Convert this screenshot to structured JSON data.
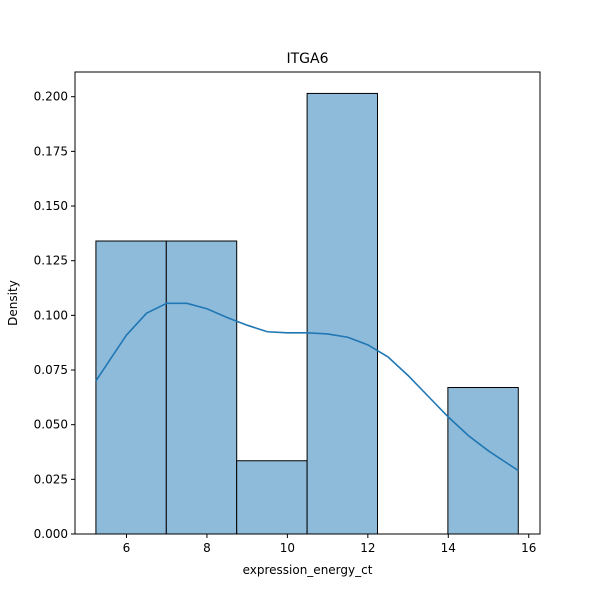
{
  "chart_data": {
    "type": "bar",
    "title": "ITGA6",
    "xlabel": "expression_energy_ct",
    "ylabel": "Density",
    "xlim": [
      4.72,
      16.28
    ],
    "ylim": [
      0,
      0.2113
    ],
    "xticks": [
      6,
      8,
      10,
      12,
      14,
      16
    ],
    "yticks": [
      0.0,
      0.025,
      0.05,
      0.075,
      0.1,
      0.125,
      0.15,
      0.175,
      0.2
    ],
    "ytick_labels": [
      "0.000",
      "0.025",
      "0.050",
      "0.075",
      "0.100",
      "0.125",
      "0.150",
      "0.175",
      "0.200"
    ],
    "bin_edges": [
      5.24,
      6.99,
      8.74,
      10.49,
      12.24,
      13.99,
      15.74
    ],
    "values": [
      0.134,
      0.134,
      0.0335,
      0.2015,
      0.0,
      0.067
    ],
    "bar_color": "#8fbbdb",
    "kde_color": "#1f77b4",
    "kde": {
      "x": [
        5.24,
        5.6,
        6.0,
        6.5,
        7.0,
        7.5,
        8.0,
        8.5,
        9.0,
        9.5,
        10.0,
        10.5,
        11.0,
        11.5,
        12.0,
        12.5,
        13.0,
        13.5,
        14.0,
        14.5,
        15.0,
        15.74
      ],
      "y": [
        0.07,
        0.08,
        0.091,
        0.101,
        0.1055,
        0.1055,
        0.103,
        0.099,
        0.0955,
        0.0925,
        0.092,
        0.092,
        0.0915,
        0.09,
        0.0865,
        0.081,
        0.0725,
        0.063,
        0.0535,
        0.045,
        0.038,
        0.029
      ]
    }
  }
}
